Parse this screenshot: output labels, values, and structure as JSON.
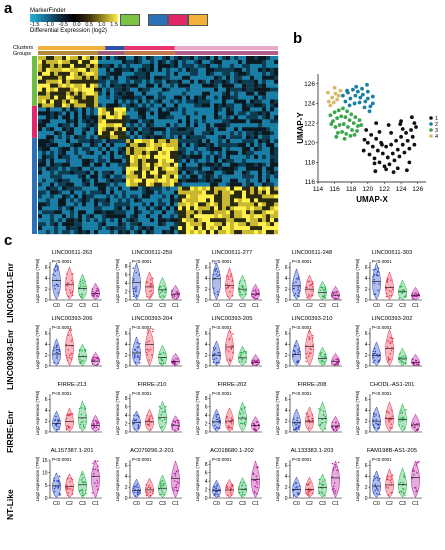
{
  "panel_labels": {
    "a": "a",
    "b": "b",
    "c": "c"
  },
  "heatmap": {
    "legend_title": "MarkerFinder",
    "legend_ticks": [
      "-1.5",
      "-1.0",
      "-0.5",
      "0.0",
      "0.5",
      "1.0",
      "1.5"
    ],
    "legend_caption": "Differential Expression (log2)",
    "clusters_label": "Clusters",
    "groups_label": "Groups",
    "cluster_colors": [
      "#1f5fa8",
      "#e8336b",
      "#7cc243",
      "#f2b13b"
    ],
    "group_colors": [
      "#6fbe44",
      "#e2286a",
      "#2d72b8"
    ]
  },
  "chart_data": [
    {
      "type": "scatter",
      "title": "",
      "xlabel": "UMAP-X",
      "ylabel": "UMAP-Y",
      "xlim": [
        114,
        127
      ],
      "ylim": [
        116,
        127
      ],
      "xticks": [
        "114",
        "116",
        "118",
        "120",
        "122",
        "124",
        "126"
      ],
      "yticks": [
        "116",
        "118",
        "120",
        "122",
        "124",
        "126"
      ],
      "legend": [
        "1",
        "2",
        "3",
        "4"
      ],
      "legend_placement": "right",
      "series": [
        {
          "name": "1",
          "color": "#111111",
          "x": [
            119.5,
            120.2,
            120.8,
            121.4,
            122.0,
            122.6,
            123.2,
            123.8,
            124.4,
            125.0,
            125.6,
            120.0,
            120.6,
            121.2,
            121.8,
            122.4,
            123.0,
            123.6,
            124.2,
            124.8,
            125.4,
            120.4,
            121.0,
            121.6,
            122.2,
            122.8,
            123.4,
            124.0,
            124.6,
            125.2,
            125.8,
            119.8,
            121.4,
            122.8,
            124.2,
            125.6,
            120.8,
            122.2,
            123.6,
            125.0,
            121.0,
            122.5,
            124.0,
            125.3,
            119.6,
            120.9,
            123.1,
            124.7,
            121.7,
            123.9
          ],
          "y": [
            119.2,
            118.8,
            118.4,
            118.0,
            117.6,
            117.8,
            118.2,
            118.6,
            119.0,
            119.4,
            119.8,
            120.0,
            119.6,
            119.2,
            118.9,
            118.5,
            118.9,
            119.3,
            119.8,
            120.2,
            120.6,
            120.8,
            120.4,
            120.0,
            119.6,
            119.8,
            120.2,
            120.6,
            121.0,
            121.3,
            121.6,
            121.3,
            121.1,
            121.0,
            121.4,
            122.0,
            117.9,
            117.3,
            117.4,
            118.0,
            122.0,
            121.8,
            122.2,
            122.6,
            120.3,
            117.1,
            117.0,
            117.2,
            119.8,
            121.9
          ]
        },
        {
          "name": "2",
          "color": "#1a7fa6",
          "x": [
            117.0,
            117.6,
            118.2,
            118.8,
            119.4,
            120.0,
            120.6,
            117.3,
            117.9,
            118.5,
            119.1,
            119.7,
            120.3,
            117.8,
            118.4,
            119.0,
            119.6,
            120.2,
            118.6,
            119.3,
            120.0,
            120.6,
            117.5,
            119.9
          ],
          "y": [
            124.8,
            125.1,
            125.4,
            125.2,
            124.9,
            124.5,
            124.0,
            124.2,
            124.5,
            124.8,
            124.6,
            124.2,
            123.7,
            123.8,
            124.0,
            124.1,
            123.6,
            123.2,
            125.7,
            125.5,
            125.2,
            124.7,
            125.3,
            125.9
          ]
        },
        {
          "name": "3",
          "color": "#3aa64a",
          "x": [
            115.5,
            116.0,
            116.5,
            117.0,
            117.5,
            118.0,
            118.5,
            119.0,
            115.8,
            116.3,
            116.8,
            117.3,
            117.8,
            118.3,
            118.8,
            116.1,
            116.6,
            117.1,
            117.6,
            118.1,
            116.4,
            116.9,
            117.4,
            117.9,
            118.4,
            115.6,
            116.2,
            118.7,
            119.2,
            117.2
          ],
          "y": [
            122.8,
            123.1,
            123.3,
            123.5,
            123.2,
            122.9,
            122.6,
            122.3,
            122.2,
            122.5,
            122.7,
            122.6,
            122.3,
            122.0,
            121.7,
            121.6,
            121.8,
            121.9,
            121.6,
            121.3,
            121.0,
            121.1,
            120.9,
            120.7,
            120.8,
            121.9,
            120.6,
            121.2,
            121.8,
            120.4
          ]
        },
        {
          "name": "4",
          "color": "#d9b86a",
          "x": [
            115.3,
            115.7,
            116.1,
            116.5,
            115.5,
            115.9,
            116.3,
            116.7,
            115.2,
            116.0
          ],
          "y": [
            124.2,
            124.6,
            125.0,
            124.8,
            123.8,
            124.1,
            124.4,
            125.3,
            125.1,
            125.6
          ]
        }
      ]
    },
    {
      "type": "violin",
      "title": "",
      "categories": [
        "C0",
        "C2",
        "C3",
        "C1"
      ],
      "category_colors": [
        "#1f3fbf",
        "#e8334a",
        "#22b14c",
        "#b0179b"
      ],
      "ylabel": "Log2 expression (TPM)",
      "rows": [
        {
          "group": "LINC00511-Enr",
          "panels": [
            {
              "gene": "LINC00511-263",
              "pvalue": "P<0.0001",
              "yticks": [
                "0",
                "2",
                "4",
                "6"
              ],
              "ylim": [
                0,
                7
              ],
              "medians": [
                3.6,
                2.8,
                2.1,
                1.2
              ]
            },
            {
              "gene": "LINC00511-259",
              "pvalue": "P<0.0001",
              "yticks": [
                "0",
                "2",
                "4",
                "6",
                "8"
              ],
              "ylim": [
                0,
                9
              ],
              "medians": [
                4.2,
                3.1,
                2.4,
                1.4
              ]
            },
            {
              "gene": "LINC00511-277",
              "pvalue": "P<0.0001",
              "yticks": [
                "0",
                "2",
                "4",
                "6"
              ],
              "ylim": [
                0,
                7
              ],
              "medians": [
                3.9,
                2.7,
                2.0,
                1.1
              ]
            },
            {
              "gene": "LINC00511-248",
              "pvalue": "P<0.0001",
              "yticks": [
                "0",
                "2",
                "4",
                "6"
              ],
              "ylim": [
                0,
                7
              ],
              "medians": [
                2.6,
                2.0,
                1.4,
                0.9
              ]
            },
            {
              "gene": "LINC00511-303",
              "pvalue": "P<0.0001",
              "yticks": [
                "0",
                "2",
                "4",
                "6"
              ],
              "ylim": [
                0,
                7
              ],
              "medians": [
                3.4,
                2.3,
                1.5,
                0.8
              ]
            }
          ]
        },
        {
          "group": "LINC00393-Enr",
          "panels": [
            {
              "gene": "LINC00393-206",
              "pvalue": "P<0.0001",
              "yticks": [
                "0",
                "2",
                "4",
                "6"
              ],
              "ylim": [
                0,
                7
              ],
              "medians": [
                2.2,
                3.8,
                1.7,
                0.9
              ]
            },
            {
              "gene": "LINC00393-204",
              "pvalue": "P<0.0001",
              "yticks": [
                "0",
                "2",
                "4",
                "6"
              ],
              "ylim": [
                0,
                7
              ],
              "medians": [
                2.4,
                4.0,
                1.6,
                0.8
              ]
            },
            {
              "gene": "LINC00393-205",
              "pvalue": "P<0.0001",
              "yticks": [
                "0",
                "2",
                "4",
                "6"
              ],
              "ylim": [
                0,
                7
              ],
              "medians": [
                2.0,
                3.5,
                1.5,
                0.7
              ]
            },
            {
              "gene": "LINC00393-210",
              "pvalue": "P<0.0001",
              "yticks": [
                "0",
                "2",
                "4",
                "6"
              ],
              "ylim": [
                0,
                7
              ],
              "medians": [
                2.1,
                3.6,
                1.4,
                0.8
              ]
            },
            {
              "gene": "LINC00393-202",
              "pvalue": "P<0.0001",
              "yticks": [
                "0",
                "2",
                "4",
                "6"
              ],
              "ylim": [
                0,
                7
              ],
              "medians": [
                1.9,
                3.2,
                1.3,
                0.7
              ]
            }
          ]
        },
        {
          "group": "FIRRE-Enr",
          "panels": [
            {
              "gene": "FIRRE-213",
              "pvalue": "P<0.0001",
              "yticks": [
                "0",
                "2",
                "4",
                "6"
              ],
              "ylim": [
                0,
                7
              ],
              "medians": [
                1.6,
                1.9,
                2.6,
                1.2
              ]
            },
            {
              "gene": "FIRRE-210",
              "pvalue": "P<0.0001",
              "yticks": [
                "0",
                "2",
                "4",
                "6",
                "8"
              ],
              "ylim": [
                0,
                9
              ],
              "medians": [
                2.2,
                2.4,
                3.4,
                1.6
              ]
            },
            {
              "gene": "FIRRE-202",
              "pvalue": "P<0.0001",
              "yticks": [
                "0",
                "2",
                "4",
                "6",
                "8"
              ],
              "ylim": [
                0,
                9
              ],
              "medians": [
                2.4,
                2.6,
                3.3,
                1.5
              ]
            },
            {
              "gene": "FIRRE-208",
              "pvalue": "P<0.0001",
              "yticks": [
                "0",
                "2",
                "4",
                "6"
              ],
              "ylim": [
                0,
                7
              ],
              "medians": [
                1.8,
                2.0,
                2.5,
                1.1
              ]
            },
            {
              "gene": "CHODL-AS1-201",
              "pvalue": "P<0.0001",
              "yticks": [
                "0",
                "2",
                "4",
                "6"
              ],
              "ylim": [
                0,
                7
              ],
              "medians": [
                2.0,
                2.5,
                2.3,
                1.3
              ]
            }
          ]
        },
        {
          "group": "NT-Like",
          "panels": [
            {
              "gene": "AL157387.1-201",
              "pvalue": "P<0.0001",
              "yticks": [
                "0",
                "5",
                "10",
                "15"
              ],
              "ylim": [
                0,
                15
              ],
              "medians": [
                4.8,
                4.6,
                5.2,
                8.6
              ]
            },
            {
              "gene": "AC079296.2-201",
              "pvalue": "P<0.0001",
              "yticks": [
                "0",
                "2",
                "4",
                "6"
              ],
              "ylim": [
                0,
                7
              ],
              "medians": [
                1.4,
                1.5,
                1.8,
                3.6
              ]
            },
            {
              "gene": "AC018680.1-202",
              "pvalue": "P<0.0001",
              "yticks": [
                "0",
                "2",
                "4",
                "6",
                "8"
              ],
              "ylim": [
                0,
                9
              ],
              "medians": [
                1.8,
                1.9,
                2.1,
                4.4
              ]
            },
            {
              "gene": "AL133383.1-203",
              "pvalue": "P<0.0001",
              "yticks": [
                "0",
                "2",
                "4",
                "6"
              ],
              "ylim": [
                0,
                7
              ],
              "medians": [
                1.6,
                1.6,
                1.9,
                3.7
              ]
            },
            {
              "gene": "FAM198B-AS1-205",
              "pvalue": "P<0.0001",
              "yticks": [
                "0",
                "2",
                "4",
                "6"
              ],
              "ylim": [
                0,
                7
              ],
              "medians": [
                2.2,
                2.4,
                2.5,
                3.8
              ]
            }
          ]
        }
      ]
    }
  ]
}
